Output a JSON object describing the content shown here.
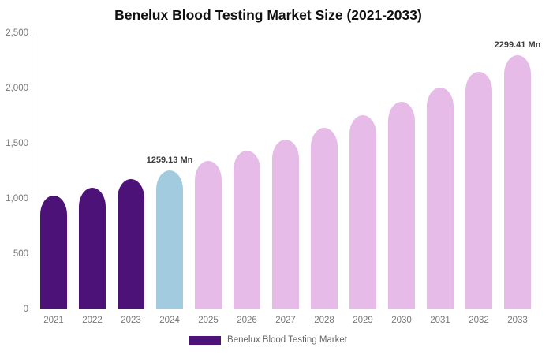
{
  "title": "Benelux Blood Testing Market Size (2021-2033)",
  "legend": {
    "label": "Benelux Blood Testing Market",
    "swatch_color": "#4d1277"
  },
  "colors": {
    "historical": "#4d1277",
    "highlight": "#a3cbdf",
    "forecast": "#e6bbe8",
    "axis_line": "#dddddd",
    "tick_text": "#777777",
    "annotation_text": "#3d3d3d"
  },
  "chart_data": {
    "type": "bar",
    "title": "Benelux Blood Testing Market Size (2021-2033)",
    "series_name": "Benelux Blood Testing Market",
    "unit": "Mn",
    "categories": [
      "2021",
      "2022",
      "2023",
      "2024",
      "2025",
      "2026",
      "2027",
      "2028",
      "2029",
      "2030",
      "2031",
      "2032",
      "2033"
    ],
    "values": [
      1030,
      1101,
      1178,
      1259.13,
      1346,
      1439,
      1538,
      1645,
      1758,
      1880,
      2010,
      2149,
      2299.41
    ],
    "bar_styles": [
      "historical",
      "historical",
      "historical",
      "highlight",
      "forecast",
      "forecast",
      "forecast",
      "forecast",
      "forecast",
      "forecast",
      "forecast",
      "forecast",
      "forecast"
    ],
    "annotations": [
      {
        "category": "2024",
        "text": "1259.13 Mn"
      },
      {
        "category": "2033",
        "text": "2299.41 Mn"
      }
    ],
    "xlabel": "",
    "ylabel": "",
    "ylim": [
      0,
      2500
    ],
    "yticks": [
      0,
      500,
      1000,
      1500,
      2000,
      2500
    ],
    "ytick_labels": [
      "0",
      "500",
      "1,000",
      "1,500",
      "2,000",
      "2,500"
    ],
    "grid": false,
    "legend_position": "bottom"
  }
}
